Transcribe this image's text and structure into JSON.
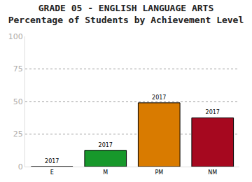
{
  "chart_data": {
    "type": "bar",
    "title": "GRADE 05 - ENGLISH LANGUAGE ARTS",
    "subtitle": "Percentage of Students by Achievement Level",
    "categories": [
      "E",
      "M",
      "PM",
      "NM"
    ],
    "series": [
      {
        "name": "2017",
        "values": [
          0,
          12.5,
          49,
          37.5
        ],
        "colors": [
          "#c8c8c8",
          "#17982b",
          "#d97b00",
          "#a6081f"
        ]
      }
    ],
    "ylim": [
      0,
      100
    ],
    "yticks": [
      0,
      25,
      50,
      75,
      100
    ],
    "grid": true
  }
}
